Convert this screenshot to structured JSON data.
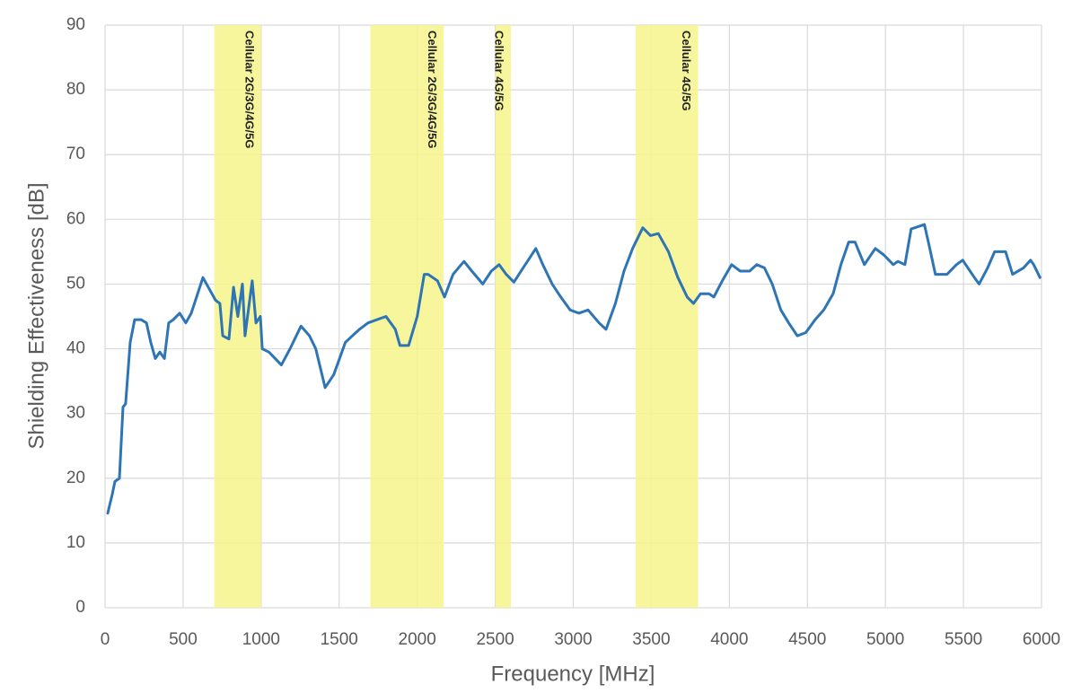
{
  "chart_data": {
    "type": "line",
    "xlabel": "Frequency [MHz]",
    "ylabel": "Shielding Effectiveness [dB]",
    "xlim": [
      0,
      6000
    ],
    "xticks": [
      0,
      500,
      1000,
      1500,
      2000,
      2500,
      3000,
      3500,
      4000,
      4500,
      5000,
      5500,
      6000
    ],
    "ylim": [
      0,
      90
    ],
    "yticks": [
      0,
      10,
      20,
      30,
      40,
      50,
      60,
      70,
      80,
      90
    ],
    "grid": true,
    "color": "#2e75b6",
    "band_color": "#f7f58c",
    "bands": [
      {
        "from": 700,
        "to": 1000,
        "label": "Cellular 2G/3G/4G/5G"
      },
      {
        "from": 1700,
        "to": 2170,
        "label": "Cellular 2G/3G/4G/5G"
      },
      {
        "from": 2500,
        "to": 2600,
        "label": "Cellular 4G/5G"
      },
      {
        "from": 3400,
        "to": 3800,
        "label": "Cellular 4G/5G"
      }
    ],
    "x": [
      17,
      46,
      63,
      92,
      115,
      132,
      161,
      190,
      230,
      265,
      293,
      322,
      351,
      380,
      408,
      437,
      478,
      518,
      552,
      593,
      627,
      708,
      736,
      754,
      794,
      823,
      851,
      880,
      897,
      943,
      967,
      995,
      1007,
      1050,
      1130,
      1185,
      1255,
      1310,
      1350,
      1410,
      1465,
      1540,
      1630,
      1685,
      1800,
      1860,
      1890,
      1945,
      2000,
      2045,
      2070,
      2130,
      2175,
      2230,
      2300,
      2350,
      2420,
      2475,
      2525,
      2570,
      2620,
      2665,
      2720,
      2760,
      2805,
      2865,
      2920,
      2980,
      3035,
      3095,
      3165,
      3210,
      3270,
      3325,
      3380,
      3445,
      3495,
      3545,
      3610,
      3670,
      3730,
      3770,
      3815,
      3870,
      3900,
      3955,
      4015,
      4070,
      4130,
      4175,
      4225,
      4275,
      4330,
      4380,
      4435,
      4490,
      4550,
      4605,
      4665,
      4715,
      4765,
      4805,
      4865,
      4935,
      4990,
      5050,
      5080,
      5125,
      5165,
      5250,
      5280,
      5320,
      5395,
      5455,
      5495,
      5570,
      5600,
      5655,
      5700,
      5770,
      5815,
      5885,
      5930,
      5950,
      5990
    ],
    "values": [
      14.6,
      17.5,
      19.5,
      20,
      31,
      31.5,
      41,
      44.5,
      44.5,
      44,
      41,
      38.5,
      39.5,
      38.5,
      44,
      44.5,
      45.5,
      44,
      45.5,
      48.5,
      51,
      47.5,
      47,
      42,
      41.5,
      49.5,
      45,
      50,
      42,
      50.5,
      44,
      45,
      40,
      39.5,
      37.5,
      40,
      43.5,
      42,
      40,
      34,
      36,
      41,
      43,
      44,
      45,
      43,
      40.5,
      40.5,
      45,
      51.5,
      51.5,
      50.5,
      48,
      51.5,
      53.5,
      52,
      50,
      52,
      53,
      51.5,
      50.3,
      52,
      54,
      55.5,
      53,
      50,
      48,
      46,
      45.5,
      46,
      44,
      43,
      47,
      52,
      55.5,
      58.7,
      57.5,
      57.8,
      55,
      51,
      48,
      47,
      48.5,
      48.5,
      48,
      50.5,
      53,
      52,
      52,
      53,
      52.5,
      50,
      46,
      44,
      42,
      42.5,
      44.5,
      46,
      48.5,
      53,
      56.5,
      56.5,
      53,
      55.5,
      54.5,
      53,
      53.5,
      53,
      58.5,
      59.2,
      56,
      51.5,
      51.5,
      53,
      53.7,
      51,
      50,
      52.5,
      55,
      55,
      51.5,
      52.5,
      53.7,
      53,
      51
    ]
  }
}
